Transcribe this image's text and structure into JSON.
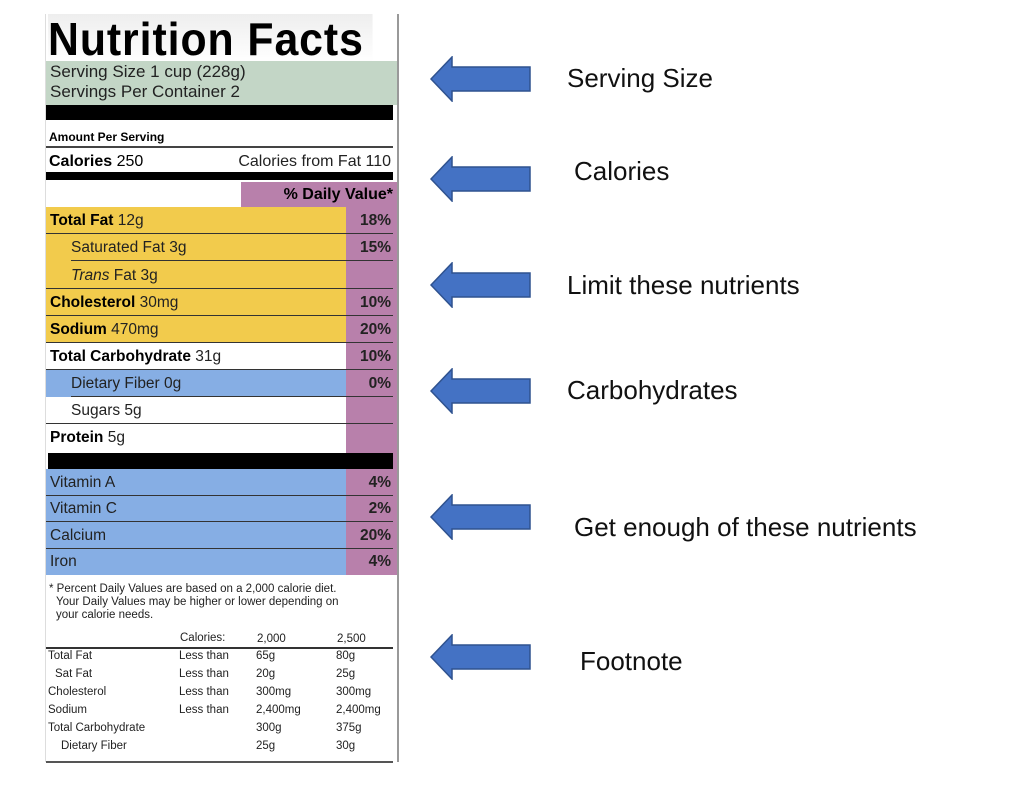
{
  "label": {
    "title": "Nutrition Facts",
    "serving_size": "Serving Size 1 cup (228g)",
    "servings_per_container": "Servings Per Container  2",
    "amount_per_serving": "Amount Per Serving",
    "calories_label": "Calories",
    "calories_value": "250",
    "calories_from_fat": "Calories from Fat 110",
    "daily_value_header": "% Daily Value*",
    "nutrients": [
      {
        "bold": "Total Fat",
        "rest": " 12g",
        "pct": "18%"
      },
      {
        "bold": "",
        "rest": "Saturated Fat 3g",
        "pct": "15%"
      },
      {
        "italic": "Trans",
        "rest": " Fat 3g",
        "pct": ""
      },
      {
        "bold": "Cholesterol",
        "rest": " 30mg",
        "pct": "10%"
      },
      {
        "bold": "Sodium",
        "rest": " 470mg",
        "pct": "20%"
      },
      {
        "bold": "Total Carbohydrate",
        "rest": " 31g",
        "pct": "10%"
      },
      {
        "bold": "",
        "rest": "Dietary Fiber 0g",
        "pct": "0%"
      },
      {
        "bold": "",
        "rest": "Sugars 5g",
        "pct": ""
      },
      {
        "bold": "Protein",
        "rest": " 5g",
        "pct": ""
      }
    ],
    "vitamins": [
      {
        "name": "Vitamin A",
        "pct": "4%"
      },
      {
        "name": "Vitamin C",
        "pct": "2%"
      },
      {
        "name": "Calcium",
        "pct": "20%"
      },
      {
        "name": "Iron",
        "pct": "4%"
      }
    ],
    "footnote": "* Percent Daily Values are based on a 2,000 calorie diet.",
    "footnote2": "Your Daily Values may be higher or lower depending on",
    "footnote3": "your calorie needs.",
    "table_header": [
      "Calories:",
      "2,000",
      "2,500"
    ],
    "table_rows": [
      [
        "Total Fat",
        "Less than",
        "65g",
        "80g"
      ],
      [
        "Sat Fat",
        "Less than",
        "20g",
        "25g"
      ],
      [
        "Cholesterol",
        "Less than",
        "300mg",
        "300mg"
      ],
      [
        "Sodium",
        "Less than",
        "2,400mg",
        "2,400mg"
      ],
      [
        "Total Carbohydrate",
        "",
        "300g",
        "375g"
      ],
      [
        "Dietary Fiber",
        "",
        "25g",
        "30g"
      ]
    ]
  },
  "annotations": [
    "Serving Size",
    "Calories",
    "Limit these nutrients",
    "Carbohydrates",
    "Get enough of these nutrients",
    "Footnote"
  ],
  "colors": {
    "serving": "#c3d6c6",
    "limit": "#f2cb4c",
    "good": "#86aee4",
    "daily_value": "#b880ab",
    "arrow": "#4472c4"
  }
}
